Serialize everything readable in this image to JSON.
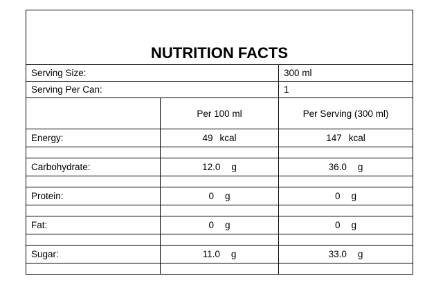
{
  "title": "NUTRITION FACTS",
  "serving_size": {
    "label": "Serving Size:",
    "value": "300 ml"
  },
  "serving_per_can": {
    "label": "Serving Per Can:",
    "value": "1"
  },
  "columns": {
    "per_100": "Per 100 ml",
    "per_serving": "Per Serving (300 ml)"
  },
  "rows": [
    {
      "label": "Energy:",
      "per_100": "49",
      "per_serving": "147",
      "unit": "kcal"
    },
    {
      "label": "Carbohydrate:",
      "per_100": "12.0",
      "per_serving": "36.0",
      "unit": "g"
    },
    {
      "label": "Protein:",
      "per_100": "0",
      "per_serving": "0",
      "unit": "g"
    },
    {
      "label": "Fat:",
      "per_100": "0",
      "per_serving": "0",
      "unit": "g"
    },
    {
      "label": "Sugar:",
      "per_100": "11.0",
      "per_serving": "33.0",
      "unit": "g"
    }
  ]
}
